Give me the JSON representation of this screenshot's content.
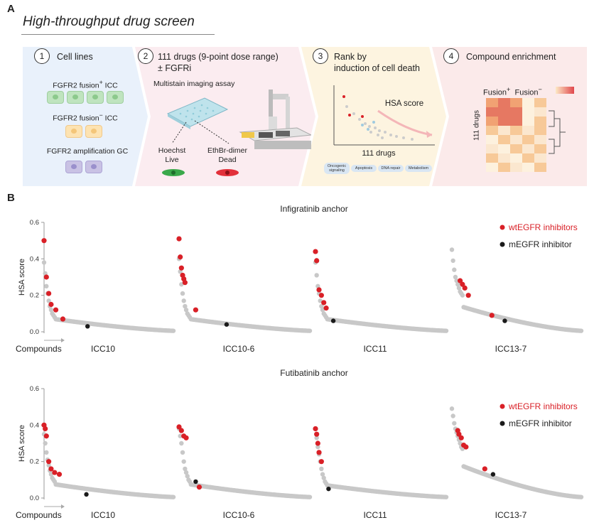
{
  "panel_a": {
    "letter": "A",
    "title": "High-throughput drug screen",
    "steps": [
      {
        "num": "1",
        "title": "Cell lines",
        "cell_lines": [
          "FGFR2 fusion",
          "ICC",
          "FGFR2 fusion",
          "ICC",
          "FGFR2 amplification GC"
        ],
        "sup": [
          "+",
          "−"
        ]
      },
      {
        "num": "2",
        "title_line1": "111 drugs (9-point dose range)",
        "title_line2": "± FGFRi",
        "assay": "Multistain imaging assay",
        "stain1_line1": "Hoechst",
        "stain1_line2": "Live",
        "stain2_line1": "EthBr-dimer",
        "stain2_line2": "Dead"
      },
      {
        "num": "3",
        "title_line1": "Rank by",
        "title_line2": "induction of cell death",
        "hsa_label": "HSA score",
        "xlabel": "111 drugs",
        "categories": [
          "Oncogenic signaling",
          "Apoptosis",
          "DNA repair",
          "Metabolism"
        ]
      },
      {
        "num": "4",
        "title": "Compound enrichment",
        "col1": "Fusion",
        "col2": "Fusion",
        "sup1": "+",
        "sup2": "−",
        "ylabel": "111 drugs"
      }
    ],
    "colors": {
      "step1": "#e9f1fb",
      "step2": "#fbecf0",
      "step3": "#fdf4e0",
      "step4": "#fbeaea"
    }
  },
  "panel_b": {
    "letter": "B",
    "legend": {
      "wt": "wtEGFR inhibitors",
      "m": "mEGFR inhibitor"
    },
    "colors": {
      "wt": "#d92027",
      "m": "#1a1a1a",
      "other": "#c8c8c8"
    },
    "ylabel": "HSA score",
    "compounds_label": "Compounds",
    "yticks": [
      "0.6",
      "0.4",
      "0.2",
      "0.0"
    ]
  },
  "chart_data": [
    {
      "type": "scatter",
      "title": "Infigratinib anchor",
      "ylabel": "HSA score",
      "ylim": [
        0,
        0.6
      ],
      "xlabel": "Compounds",
      "legend": [
        "wtEGFR inhibitors",
        "mEGFR inhibitor"
      ],
      "panels": [
        {
          "name": "ICC10",
          "top": [
            0.38,
            0.32,
            0.25,
            0.21,
            0.17,
            0.14,
            0.12,
            0.1,
            0.09,
            0.08
          ],
          "wt": [
            [
              0,
              0.5
            ],
            [
              2,
              0.3
            ],
            [
              4,
              0.21
            ],
            [
              6,
              0.15
            ],
            [
              10,
              0.12
            ],
            [
              16,
              0.07
            ]
          ],
          "m": [
            [
              37,
              0.03
            ]
          ]
        },
        {
          "name": "ICC10-6",
          "top": [
            0.4,
            0.33,
            0.26,
            0.21,
            0.17,
            0.14,
            0.12,
            0.1,
            0.09,
            0.08
          ],
          "wt": [
            [
              0,
              0.51
            ],
            [
              1,
              0.41
            ],
            [
              2,
              0.35
            ],
            [
              3,
              0.31
            ],
            [
              4,
              0.29
            ],
            [
              5,
              0.27
            ],
            [
              14,
              0.12
            ]
          ],
          "m": [
            [
              40,
              0.04
            ]
          ]
        },
        {
          "name": "ICC11",
          "top": [
            0.38,
            0.31,
            0.25,
            0.21,
            0.17,
            0.14,
            0.12,
            0.1,
            0.09,
            0.08
          ],
          "wt": [
            [
              0,
              0.44
            ],
            [
              1,
              0.39
            ],
            [
              3,
              0.23
            ],
            [
              5,
              0.2
            ],
            [
              7,
              0.16
            ],
            [
              9,
              0.13
            ]
          ],
          "m": [
            [
              15,
              0.06
            ]
          ]
        },
        {
          "name": "ICC13-7",
          "top": [
            0.45,
            0.39,
            0.34,
            0.3,
            0.28,
            0.26,
            0.24,
            0.22,
            0.21,
            0.2
          ],
          "wt": [
            [
              7,
              0.28
            ],
            [
              9,
              0.26
            ],
            [
              11,
              0.24
            ],
            [
              14,
              0.2
            ],
            [
              34,
              0.09
            ]
          ],
          "m": [
            [
              45,
              0.06
            ]
          ]
        }
      ]
    },
    {
      "type": "scatter",
      "title": "Futibatinib anchor",
      "ylabel": "HSA score",
      "ylim": [
        0,
        0.6
      ],
      "xlabel": "Compounds",
      "legend": [
        "wtEGFR inhibitors",
        "mEGFR inhibitor"
      ],
      "panels": [
        {
          "name": "ICC10",
          "top": [
            0.35,
            0.3,
            0.25,
            0.21,
            0.18,
            0.15,
            0.13,
            0.11,
            0.1,
            0.09
          ],
          "wt": [
            [
              0,
              0.4
            ],
            [
              1,
              0.38
            ],
            [
              2,
              0.34
            ],
            [
              4,
              0.2
            ],
            [
              6,
              0.16
            ],
            [
              9,
              0.14
            ],
            [
              13,
              0.13
            ]
          ],
          "m": [
            [
              36,
              0.02
            ]
          ]
        },
        {
          "name": "ICC10-6",
          "top": [
            0.38,
            0.34,
            0.3,
            0.25,
            0.2,
            0.16,
            0.14,
            0.12,
            0.1,
            0.09
          ],
          "wt": [
            [
              0,
              0.39
            ],
            [
              2,
              0.37
            ],
            [
              4,
              0.34
            ],
            [
              6,
              0.33
            ],
            [
              17,
              0.06
            ]
          ],
          "m": [
            [
              14,
              0.09
            ]
          ]
        },
        {
          "name": "ICC11",
          "top": [
            0.38,
            0.33,
            0.28,
            0.24,
            0.2,
            0.16,
            0.13,
            0.11,
            0.09,
            0.08
          ],
          "wt": [
            [
              0,
              0.38
            ],
            [
              1,
              0.35
            ],
            [
              2,
              0.3
            ],
            [
              3,
              0.25
            ],
            [
              5,
              0.2
            ]
          ],
          "m": [
            [
              11,
              0.05
            ]
          ]
        },
        {
          "name": "ICC13-7",
          "top": [
            0.49,
            0.45,
            0.41,
            0.38,
            0.36,
            0.34,
            0.32,
            0.3,
            0.28,
            0.27
          ],
          "wt": [
            [
              5,
              0.37
            ],
            [
              6,
              0.35
            ],
            [
              8,
              0.33
            ],
            [
              10,
              0.29
            ],
            [
              12,
              0.28
            ],
            [
              28,
              0.16
            ]
          ],
          "m": [
            [
              35,
              0.13
            ]
          ]
        }
      ]
    }
  ]
}
